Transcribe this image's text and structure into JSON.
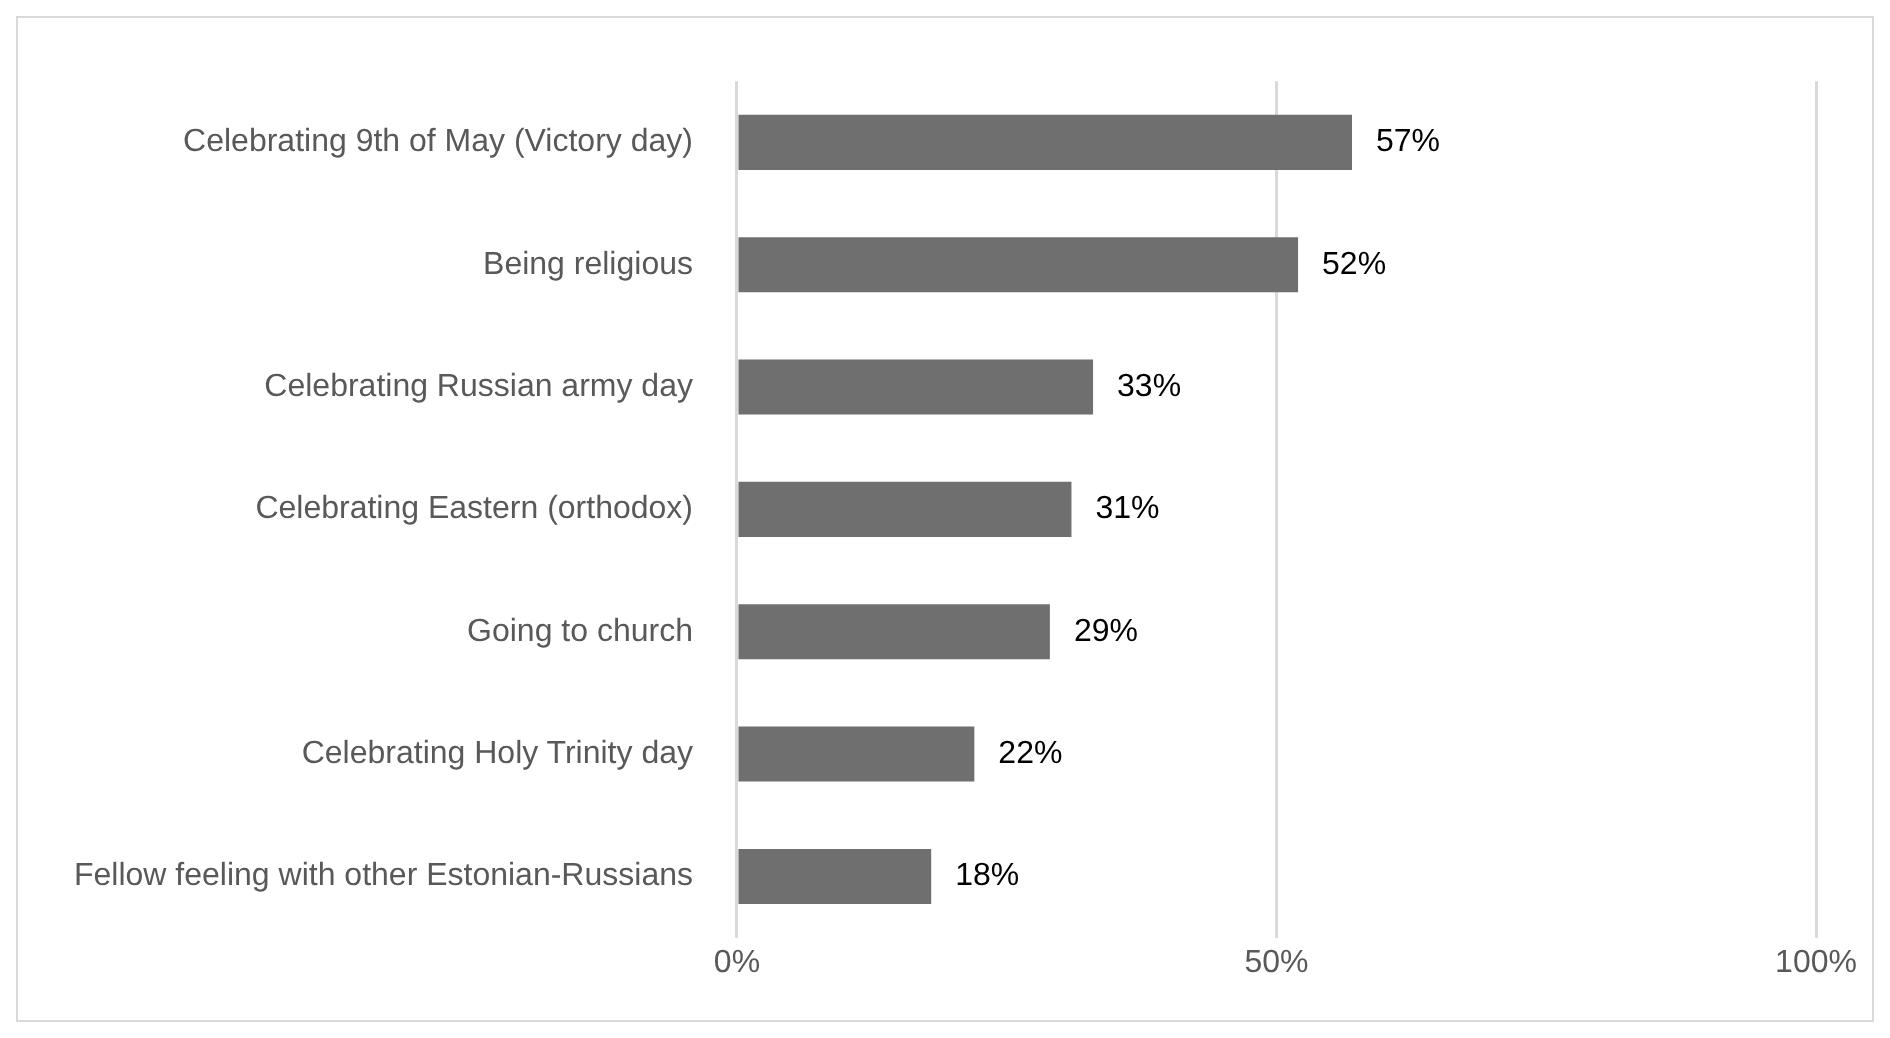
{
  "chart_data": {
    "type": "bar",
    "orientation": "horizontal",
    "categories": [
      "Celebrating 9th of May (Victory day)",
      "Being religious",
      "Celebrating Russian army day",
      "Celebrating Eastern (orthodox)",
      "Going to church",
      "Celebrating Holy Trinity day",
      "Fellow feeling with other Estonian-Russians"
    ],
    "values": [
      57,
      52,
      33,
      31,
      29,
      22,
      18
    ],
    "value_labels": [
      "57%",
      "52%",
      "33%",
      "31%",
      "29%",
      "22%",
      "18%"
    ],
    "color": "#6f6f6f",
    "xlim": [
      0,
      100
    ],
    "xticks": [
      {
        "value": 0,
        "label": "0%"
      },
      {
        "value": 50,
        "label": "50%"
      },
      {
        "value": 100,
        "label": "100%"
      }
    ],
    "grid": "x",
    "legend": false
  }
}
